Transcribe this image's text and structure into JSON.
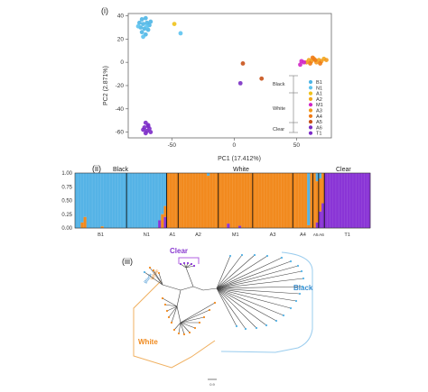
{
  "panels": {
    "i": "(i)",
    "ii": "(ii)",
    "iii": "(iii)"
  },
  "colors": {
    "B1": "#4fb6e6",
    "N1": "#5cc3ef",
    "A1": "#f0c21b",
    "A2": "#f2a71c",
    "M1": "#d026c6",
    "A3": "#f39a1e",
    "A4": "#f07a16",
    "A5": "#c8521a",
    "A6": "#7a2fc4",
    "T1": "#7c2bc8",
    "admix_blue": "#55b3e6",
    "admix_orange": "#f28a1e",
    "admix_purple": "#8a35d6",
    "tree_black_bracket": "#99ccee",
    "tree_white_bracket": "#f0b060",
    "tree_clear_bracket": "#b060e0",
    "tree_black_label": "#3a8fd0",
    "tree_white_label": "#f08a1e",
    "tree_clear_label": "#8a3ad0"
  },
  "chart_data": [
    {
      "type": "scatter",
      "xlabel": "PC1 (17.412%)",
      "ylabel": "PC2 (2.871%)",
      "xlim": [
        -85,
        78
      ],
      "ylim": [
        -65,
        42
      ],
      "xticks": [
        -50,
        0,
        50
      ],
      "yticks": [
        40,
        20,
        0,
        -20,
        -40,
        -60
      ],
      "bracket_labels": [
        "Black",
        "White",
        "Clear"
      ],
      "legend": [
        "B1",
        "N1",
        "A1",
        "A2",
        "M1",
        "A3",
        "A4",
        "A5",
        "A6",
        "T1"
      ],
      "points": [
        {
          "g": "B1",
          "x": -74,
          "y": 37
        },
        {
          "g": "B1",
          "x": -71,
          "y": 38
        },
        {
          "g": "B1",
          "x": -76,
          "y": 34
        },
        {
          "g": "B1",
          "x": -73,
          "y": 33
        },
        {
          "g": "B1",
          "x": -70,
          "y": 34
        },
        {
          "g": "B1",
          "x": -68,
          "y": 32
        },
        {
          "g": "B1",
          "x": -75,
          "y": 30
        },
        {
          "g": "B1",
          "x": -72,
          "y": 29
        },
        {
          "g": "B1",
          "x": -69,
          "y": 28
        },
        {
          "g": "B1",
          "x": -74,
          "y": 26
        },
        {
          "g": "B1",
          "x": -71,
          "y": 24
        },
        {
          "g": "B1",
          "x": -67,
          "y": 35
        },
        {
          "g": "N1",
          "x": -77,
          "y": 31
        },
        {
          "g": "N1",
          "x": -70,
          "y": 31
        },
        {
          "g": "N1",
          "x": -73,
          "y": 22
        },
        {
          "g": "N1",
          "x": -43,
          "y": 25
        },
        {
          "g": "A1",
          "x": -48,
          "y": 33
        },
        {
          "g": "A2",
          "x": 60,
          "y": 2
        },
        {
          "g": "A2",
          "x": 64,
          "y": 3
        },
        {
          "g": "A2",
          "x": 68,
          "y": 2
        },
        {
          "g": "A2",
          "x": 72,
          "y": 3
        },
        {
          "g": "A3",
          "x": 58,
          "y": 0
        },
        {
          "g": "A3",
          "x": 62,
          "y": 1
        },
        {
          "g": "A3",
          "x": 66,
          "y": 0
        },
        {
          "g": "A3",
          "x": 70,
          "y": 1
        },
        {
          "g": "A3",
          "x": 74,
          "y": 2
        },
        {
          "g": "A4",
          "x": 61,
          "y": -1
        },
        {
          "g": "A4",
          "x": 65,
          "y": 2
        },
        {
          "g": "A4",
          "x": 69,
          "y": -1
        },
        {
          "g": "A4",
          "x": 63,
          "y": 4
        },
        {
          "g": "A5",
          "x": 22,
          "y": -14
        },
        {
          "g": "A5",
          "x": 7,
          "y": -1
        },
        {
          "g": "M1",
          "x": 53,
          "y": -2
        },
        {
          "g": "M1",
          "x": 56,
          "y": 0
        },
        {
          "g": "M1",
          "x": 54,
          "y": 1
        },
        {
          "g": "A6",
          "x": 5,
          "y": -18
        },
        {
          "g": "T1",
          "x": -71,
          "y": -52
        },
        {
          "g": "T1",
          "x": -69,
          "y": -54
        },
        {
          "g": "T1",
          "x": -72,
          "y": -56
        },
        {
          "g": "T1",
          "x": -68,
          "y": -57
        },
        {
          "g": "T1",
          "x": -70,
          "y": -59
        },
        {
          "g": "T1",
          "x": -73,
          "y": -58
        },
        {
          "g": "T1",
          "x": -67,
          "y": -60
        },
        {
          "g": "T1",
          "x": -71,
          "y": -61
        },
        {
          "g": "T1",
          "x": -69,
          "y": -55
        }
      ]
    },
    {
      "type": "bar",
      "stacked": true,
      "yticks": [
        "1.00",
        "0.75",
        "0.50",
        "0.25",
        "0.00"
      ],
      "ylim": [
        0,
        1
      ],
      "top_labels": [
        "Black",
        "White",
        "Clear"
      ],
      "populations": [
        {
          "label": "B1",
          "n": 18,
          "a": [
            1,
            0,
            0
          ],
          "exceptions": [
            [
              2,
              [
                0.9,
                0.1,
                0
              ]
            ],
            [
              3,
              [
                0.8,
                0.2,
                0
              ]
            ],
            [
              9,
              [
                0.97,
                0.03,
                0
              ]
            ]
          ]
        },
        {
          "label": "N1",
          "n": 14,
          "a": [
            1,
            0,
            0
          ],
          "exceptions": [
            [
              11,
              [
                0.86,
                0,
                0.14
              ]
            ],
            [
              12,
              [
                0.75,
                0.25,
                0
              ]
            ],
            [
              13,
              [
                0.6,
                0.2,
                0.2
              ]
            ]
          ]
        },
        {
          "label": "A1",
          "n": 4,
          "a": [
            0,
            1,
            0
          ],
          "exceptions": []
        },
        {
          "label": "A2",
          "n": 14,
          "a": [
            0,
            1,
            0
          ],
          "exceptions": [
            [
              10,
              [
                0.05,
                0.95,
                0
              ]
            ]
          ]
        },
        {
          "label": "M1",
          "n": 12,
          "a": [
            0,
            1,
            0
          ],
          "exceptions": [
            [
              3,
              [
                0,
                0.92,
                0.08
              ]
            ],
            [
              7,
              [
                0,
                0.96,
                0.04
              ]
            ]
          ]
        },
        {
          "label": "A3",
          "n": 14,
          "a": [
            0,
            1,
            0
          ],
          "exceptions": []
        },
        {
          "label": "A4",
          "n": 7,
          "a": [
            0,
            1,
            0
          ],
          "exceptions": [
            [
              5,
              [
                0.95,
                0.05,
                0
              ]
            ]
          ]
        },
        {
          "label": "A5",
          "n": 2,
          "a": [
            0,
            1,
            0
          ],
          "exceptions": [
            [
              1,
              [
                0.15,
                0.75,
                0.1
              ]
            ]
          ]
        },
        {
          "label": "A6",
          "n": 2,
          "a": [
            0,
            0.55,
            0.45
          ],
          "exceptions": [
            [
              0,
              [
                0.1,
                0.6,
                0.3
              ]
            ]
          ]
        },
        {
          "label": "T1",
          "n": 16,
          "a": [
            0,
            0,
            1
          ],
          "exceptions": []
        }
      ]
    }
  ],
  "tree": {
    "labels": {
      "clear": "Clear",
      "black": "Black",
      "white": "White",
      "black_small": "Black",
      "white_small": "White"
    },
    "scale": "0.9"
  }
}
